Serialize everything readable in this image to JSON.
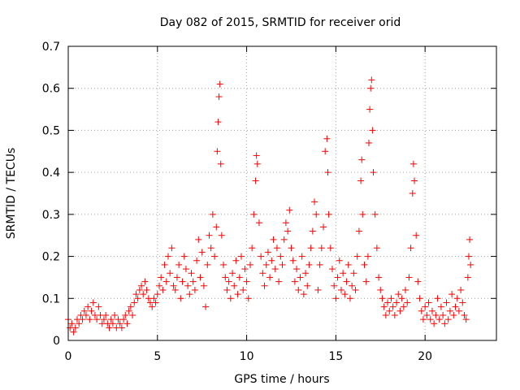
{
  "chart_data": {
    "type": "scatter",
    "title": "Day 082 of 2015, SRMTID for receiver orid",
    "xlabel": "GPS time / hours",
    "ylabel": "SRMTID / TECUs",
    "xlim": [
      0,
      24
    ],
    "ylim": [
      0,
      0.7
    ],
    "x_ticks": [
      0,
      5,
      10,
      15,
      20
    ],
    "x_tick_labels": [
      "0",
      "5",
      "10",
      "15",
      "20"
    ],
    "y_ticks": [
      0,
      0.1,
      0.2,
      0.3,
      0.4,
      0.5,
      0.6,
      0.7
    ],
    "y_tick_labels": [
      "0",
      "0.1",
      "0.2",
      "0.3",
      "0.4",
      "0.5",
      "0.6",
      "0.7"
    ],
    "grid": true,
    "marker": "+",
    "color": "#ff0000",
    "series": [
      {
        "name": "SRMTID",
        "points": [
          [
            0.0,
            0.05
          ],
          [
            0.1,
            0.03
          ],
          [
            0.2,
            0.04
          ],
          [
            0.3,
            0.02
          ],
          [
            0.4,
            0.03
          ],
          [
            0.5,
            0.05
          ],
          [
            0.6,
            0.04
          ],
          [
            0.7,
            0.06
          ],
          [
            0.8,
            0.05
          ],
          [
            0.9,
            0.07
          ],
          [
            1.0,
            0.06
          ],
          [
            1.1,
            0.08
          ],
          [
            1.2,
            0.05
          ],
          [
            1.3,
            0.07
          ],
          [
            1.4,
            0.09
          ],
          [
            1.5,
            0.06
          ],
          [
            1.6,
            0.05
          ],
          [
            1.7,
            0.08
          ],
          [
            1.8,
            0.06
          ],
          [
            1.9,
            0.04
          ],
          [
            2.0,
            0.05
          ],
          [
            2.1,
            0.06
          ],
          [
            2.2,
            0.04
          ],
          [
            2.3,
            0.03
          ],
          [
            2.4,
            0.05
          ],
          [
            2.5,
            0.04
          ],
          [
            2.6,
            0.06
          ],
          [
            2.7,
            0.03
          ],
          [
            2.8,
            0.05
          ],
          [
            2.9,
            0.04
          ],
          [
            3.0,
            0.03
          ],
          [
            3.1,
            0.05
          ],
          [
            3.2,
            0.06
          ],
          [
            3.3,
            0.04
          ],
          [
            3.4,
            0.07
          ],
          [
            3.5,
            0.08
          ],
          [
            3.6,
            0.06
          ],
          [
            3.7,
            0.09
          ],
          [
            3.8,
            0.11
          ],
          [
            3.9,
            0.1
          ],
          [
            4.0,
            0.12
          ],
          [
            4.1,
            0.13
          ],
          [
            4.2,
            0.11
          ],
          [
            4.3,
            0.14
          ],
          [
            4.4,
            0.12
          ],
          [
            4.5,
            0.1
          ],
          [
            4.6,
            0.09
          ],
          [
            4.7,
            0.08
          ],
          [
            4.8,
            0.1
          ],
          [
            4.9,
            0.09
          ],
          [
            5.0,
            0.11
          ],
          [
            5.1,
            0.13
          ],
          [
            5.2,
            0.15
          ],
          [
            5.3,
            0.12
          ],
          [
            5.4,
            0.18
          ],
          [
            5.5,
            0.14
          ],
          [
            5.6,
            0.2
          ],
          [
            5.7,
            0.16
          ],
          [
            5.8,
            0.22
          ],
          [
            5.9,
            0.13
          ],
          [
            6.0,
            0.12
          ],
          [
            6.1,
            0.15
          ],
          [
            6.2,
            0.18
          ],
          [
            6.3,
            0.1
          ],
          [
            6.4,
            0.14
          ],
          [
            6.5,
            0.2
          ],
          [
            6.6,
            0.17
          ],
          [
            6.7,
            0.13
          ],
          [
            6.8,
            0.11
          ],
          [
            6.9,
            0.16
          ],
          [
            7.0,
            0.14
          ],
          [
            7.1,
            0.12
          ],
          [
            7.2,
            0.19
          ],
          [
            7.3,
            0.24
          ],
          [
            7.4,
            0.15
          ],
          [
            7.5,
            0.21
          ],
          [
            7.6,
            0.13
          ],
          [
            7.7,
            0.08
          ],
          [
            7.8,
            0.18
          ],
          [
            7.9,
            0.25
          ],
          [
            8.0,
            0.22
          ],
          [
            8.1,
            0.3
          ],
          [
            8.2,
            0.2
          ],
          [
            8.3,
            0.27
          ],
          [
            8.35,
            0.45
          ],
          [
            8.4,
            0.52
          ],
          [
            8.45,
            0.58
          ],
          [
            8.5,
            0.61
          ],
          [
            8.55,
            0.42
          ],
          [
            8.6,
            0.25
          ],
          [
            8.7,
            0.18
          ],
          [
            8.8,
            0.15
          ],
          [
            8.9,
            0.12
          ],
          [
            9.0,
            0.14
          ],
          [
            9.1,
            0.1
          ],
          [
            9.2,
            0.16
          ],
          [
            9.3,
            0.13
          ],
          [
            9.4,
            0.19
          ],
          [
            9.5,
            0.11
          ],
          [
            9.6,
            0.15
          ],
          [
            9.7,
            0.2
          ],
          [
            9.8,
            0.12
          ],
          [
            9.9,
            0.17
          ],
          [
            10.0,
            0.14
          ],
          [
            10.1,
            0.1
          ],
          [
            10.2,
            0.18
          ],
          [
            10.3,
            0.22
          ],
          [
            10.4,
            0.3
          ],
          [
            10.5,
            0.38
          ],
          [
            10.55,
            0.44
          ],
          [
            10.6,
            0.42
          ],
          [
            10.7,
            0.28
          ],
          [
            10.8,
            0.2
          ],
          [
            10.9,
            0.16
          ],
          [
            11.0,
            0.13
          ],
          [
            11.1,
            0.18
          ],
          [
            11.2,
            0.21
          ],
          [
            11.3,
            0.15
          ],
          [
            11.4,
            0.19
          ],
          [
            11.5,
            0.24
          ],
          [
            11.6,
            0.17
          ],
          [
            11.7,
            0.22
          ],
          [
            11.8,
            0.14
          ],
          [
            11.9,
            0.2
          ],
          [
            12.0,
            0.18
          ],
          [
            12.1,
            0.24
          ],
          [
            12.2,
            0.28
          ],
          [
            12.3,
            0.26
          ],
          [
            12.4,
            0.31
          ],
          [
            12.5,
            0.22
          ],
          [
            12.6,
            0.19
          ],
          [
            12.7,
            0.14
          ],
          [
            12.8,
            0.17
          ],
          [
            12.9,
            0.12
          ],
          [
            13.0,
            0.15
          ],
          [
            13.1,
            0.2
          ],
          [
            13.2,
            0.11
          ],
          [
            13.3,
            0.16
          ],
          [
            13.4,
            0.13
          ],
          [
            13.5,
            0.18
          ],
          [
            13.6,
            0.22
          ],
          [
            13.7,
            0.26
          ],
          [
            13.8,
            0.33
          ],
          [
            13.9,
            0.3
          ],
          [
            14.0,
            0.12
          ],
          [
            14.1,
            0.18
          ],
          [
            14.2,
            0.22
          ],
          [
            14.3,
            0.27
          ],
          [
            14.4,
            0.45
          ],
          [
            14.5,
            0.48
          ],
          [
            14.55,
            0.4
          ],
          [
            14.6,
            0.3
          ],
          [
            14.7,
            0.22
          ],
          [
            14.8,
            0.17
          ],
          [
            14.9,
            0.13
          ],
          [
            15.0,
            0.1
          ],
          [
            15.1,
            0.15
          ],
          [
            15.2,
            0.19
          ],
          [
            15.3,
            0.12
          ],
          [
            15.4,
            0.16
          ],
          [
            15.5,
            0.11
          ],
          [
            15.6,
            0.14
          ],
          [
            15.7,
            0.18
          ],
          [
            15.8,
            0.1
          ],
          [
            15.9,
            0.13
          ],
          [
            16.0,
            0.16
          ],
          [
            16.1,
            0.12
          ],
          [
            16.2,
            0.2
          ],
          [
            16.3,
            0.26
          ],
          [
            16.4,
            0.38
          ],
          [
            16.45,
            0.43
          ],
          [
            16.5,
            0.3
          ],
          [
            16.6,
            0.18
          ],
          [
            16.7,
            0.14
          ],
          [
            16.8,
            0.2
          ],
          [
            16.85,
            0.47
          ],
          [
            16.9,
            0.55
          ],
          [
            16.95,
            0.6
          ],
          [
            17.0,
            0.62
          ],
          [
            17.05,
            0.5
          ],
          [
            17.1,
            0.4
          ],
          [
            17.2,
            0.3
          ],
          [
            17.3,
            0.22
          ],
          [
            17.4,
            0.15
          ],
          [
            17.5,
            0.12
          ],
          [
            17.6,
            0.1
          ],
          [
            17.7,
            0.08
          ],
          [
            17.8,
            0.06
          ],
          [
            17.9,
            0.09
          ],
          [
            18.0,
            0.07
          ],
          [
            18.1,
            0.1
          ],
          [
            18.2,
            0.08
          ],
          [
            18.3,
            0.06
          ],
          [
            18.4,
            0.09
          ],
          [
            18.5,
            0.11
          ],
          [
            18.6,
            0.07
          ],
          [
            18.7,
            0.1
          ],
          [
            18.8,
            0.08
          ],
          [
            18.9,
            0.12
          ],
          [
            19.0,
            0.09
          ],
          [
            19.1,
            0.15
          ],
          [
            19.2,
            0.22
          ],
          [
            19.3,
            0.35
          ],
          [
            19.35,
            0.42
          ],
          [
            19.4,
            0.38
          ],
          [
            19.5,
            0.25
          ],
          [
            19.6,
            0.14
          ],
          [
            19.7,
            0.1
          ],
          [
            19.8,
            0.07
          ],
          [
            19.9,
            0.05
          ],
          [
            20.0,
            0.08
          ],
          [
            20.1,
            0.06
          ],
          [
            20.2,
            0.09
          ],
          [
            20.3,
            0.05
          ],
          [
            20.4,
            0.07
          ],
          [
            20.5,
            0.04
          ],
          [
            20.6,
            0.06
          ],
          [
            20.7,
            0.1
          ],
          [
            20.8,
            0.05
          ],
          [
            20.9,
            0.08
          ],
          [
            21.0,
            0.06
          ],
          [
            21.1,
            0.04
          ],
          [
            21.2,
            0.09
          ],
          [
            21.3,
            0.05
          ],
          [
            21.4,
            0.07
          ],
          [
            21.5,
            0.11
          ],
          [
            21.6,
            0.06
          ],
          [
            21.7,
            0.08
          ],
          [
            21.8,
            0.1
          ],
          [
            21.9,
            0.07
          ],
          [
            22.0,
            0.12
          ],
          [
            22.1,
            0.09
          ],
          [
            22.2,
            0.06
          ],
          [
            22.3,
            0.05
          ],
          [
            22.4,
            0.15
          ],
          [
            22.45,
            0.2
          ],
          [
            22.5,
            0.24
          ],
          [
            22.55,
            0.18
          ]
        ]
      }
    ]
  }
}
